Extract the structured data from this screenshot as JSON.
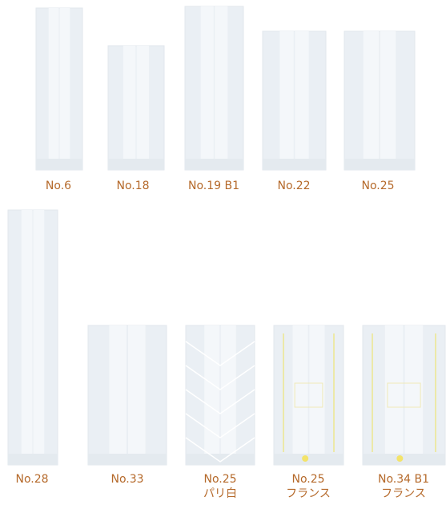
{
  "products": [
    {
      "label": "No.6"
    },
    {
      "label": "No.18"
    },
    {
      "label": "No.19 B1"
    },
    {
      "label": "No.22"
    },
    {
      "label": "No.25"
    },
    {
      "label": "No.28"
    },
    {
      "label": "No.33"
    },
    {
      "label": "No.25",
      "sublabel": "パリ白"
    },
    {
      "label": "No.25",
      "sublabel": "フランス"
    },
    {
      "label": "No.34 B1",
      "sublabel": "フランス"
    }
  ]
}
